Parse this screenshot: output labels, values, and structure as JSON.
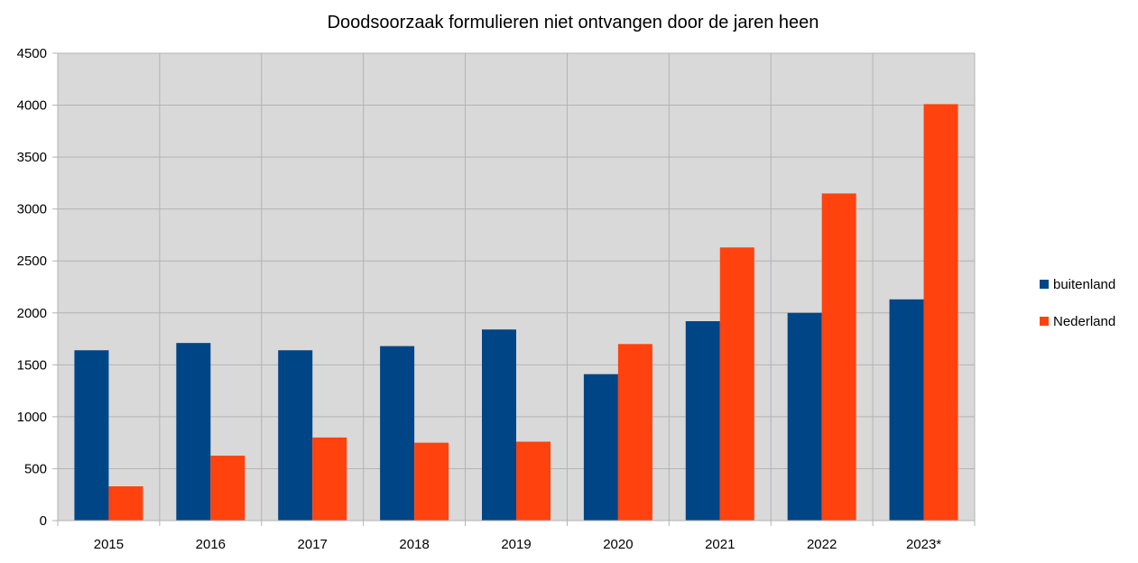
{
  "chart_data": {
    "type": "bar",
    "title": "Doodsoorzaak formulieren niet ontvangen door de jaren heen",
    "xlabel": "",
    "ylabel": "",
    "categories": [
      "2015",
      "2016",
      "2017",
      "2018",
      "2019",
      "2020",
      "2021",
      "2022",
      "2023*"
    ],
    "series": [
      {
        "name": "buitenland",
        "color": "#004586",
        "values": [
          1640,
          1710,
          1640,
          1680,
          1840,
          1410,
          1920,
          2000,
          2130
        ]
      },
      {
        "name": "Nederland",
        "color": "#ff420e",
        "values": [
          330,
          625,
          800,
          750,
          760,
          1700,
          2630,
          3150,
          4010
        ]
      }
    ],
    "ylim": [
      0,
      4500
    ],
    "yticks": [
      "0",
      "500",
      "1000",
      "1500",
      "2000",
      "2500",
      "3000",
      "3500",
      "4000",
      "4500"
    ],
    "grid": true,
    "legend": "right",
    "plot_background": "#d9d9d9"
  }
}
